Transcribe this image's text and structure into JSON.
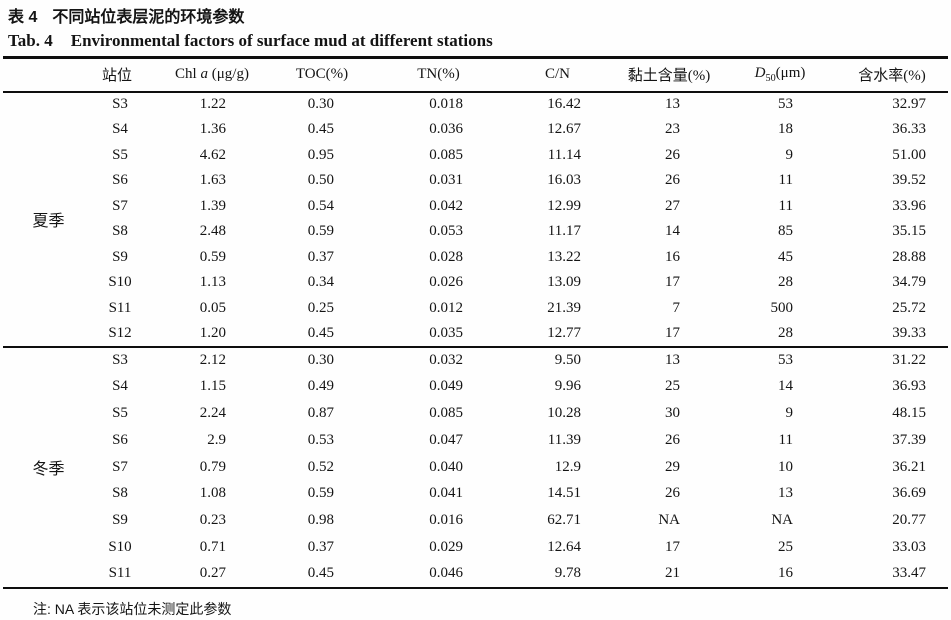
{
  "page": {
    "title_zh_label": "表 4",
    "title_zh_text": "不同站位表层泥的环境参数",
    "title_en_label": "Tab. 4",
    "title_en_text": "Environmental factors of surface mud at different stations",
    "note": "注: NA 表示该站位未测定此参数"
  },
  "table": {
    "columns": [
      {
        "label": "站位"
      },
      {
        "pre": "Chl ",
        "it": "a",
        "post": " (μg/g)"
      },
      {
        "label": "TOC(%)"
      },
      {
        "label": "TN(%)"
      },
      {
        "label": "C/N"
      },
      {
        "label": "黏土含量(%)"
      },
      {
        "it": "D",
        "sub": "50",
        "post": "(μm)"
      },
      {
        "label": "含水率(%)"
      }
    ],
    "col_keys": [
      "station",
      "chla",
      "toc",
      "tn",
      "cn",
      "clay",
      "d50",
      "water"
    ],
    "groups": [
      {
        "season": "夏季",
        "rows": [
          [
            "S3",
            "1.22",
            "0.30",
            "0.018",
            "16.42",
            "13",
            "53",
            "32.97"
          ],
          [
            "S4",
            "1.36",
            "0.45",
            "0.036",
            "12.67",
            "23",
            "18",
            "36.33"
          ],
          [
            "S5",
            "4.62",
            "0.95",
            "0.085",
            "11.14",
            "26",
            "9",
            "51.00"
          ],
          [
            "S6",
            "1.63",
            "0.50",
            "0.031",
            "16.03",
            "26",
            "11",
            "39.52"
          ],
          [
            "S7",
            "1.39",
            "0.54",
            "0.042",
            "12.99",
            "27",
            "11",
            "33.96"
          ],
          [
            "S8",
            "2.48",
            "0.59",
            "0.053",
            "11.17",
            "14",
            "85",
            "35.15"
          ],
          [
            "S9",
            "0.59",
            "0.37",
            "0.028",
            "13.22",
            "16",
            "45",
            "28.88"
          ],
          [
            "S10",
            "1.13",
            "0.34",
            "0.026",
            "13.09",
            "17",
            "28",
            "34.79"
          ],
          [
            "S11",
            "0.05",
            "0.25",
            "0.012",
            "21.39",
            "7",
            "500",
            "25.72"
          ],
          [
            "S12",
            "1.20",
            "0.45",
            "0.035",
            "12.77",
            "17",
            "28",
            "39.33"
          ]
        ]
      },
      {
        "season": "冬季",
        "rows": [
          [
            "S3",
            "2.12",
            "0.30",
            "0.032",
            "9.50",
            "13",
            "53",
            "31.22"
          ],
          [
            "S4",
            "1.15",
            "0.49",
            "0.049",
            "9.96",
            "25",
            "14",
            "36.93"
          ],
          [
            "S5",
            "2.24",
            "0.87",
            "0.085",
            "10.28",
            "30",
            "9",
            "48.15"
          ],
          [
            "S6",
            "2.9",
            "0.53",
            "0.047",
            "11.39",
            "26",
            "11",
            "37.39"
          ],
          [
            "S7",
            "0.79",
            "0.52",
            "0.040",
            "12.9",
            "29",
            "10",
            "36.21"
          ],
          [
            "S8",
            "1.08",
            "0.59",
            "0.041",
            "14.51",
            "26",
            "13",
            "36.69"
          ],
          [
            "S9",
            "0.23",
            "0.98",
            "0.016",
            "62.71",
            "NA",
            "NA",
            "20.77"
          ],
          [
            "S10",
            "0.71",
            "0.37",
            "0.029",
            "12.64",
            "17",
            "25",
            "33.03"
          ],
          [
            "S11",
            "0.27",
            "0.45",
            "0.046",
            "9.78",
            "21",
            "16",
            "33.47"
          ]
        ]
      }
    ]
  }
}
